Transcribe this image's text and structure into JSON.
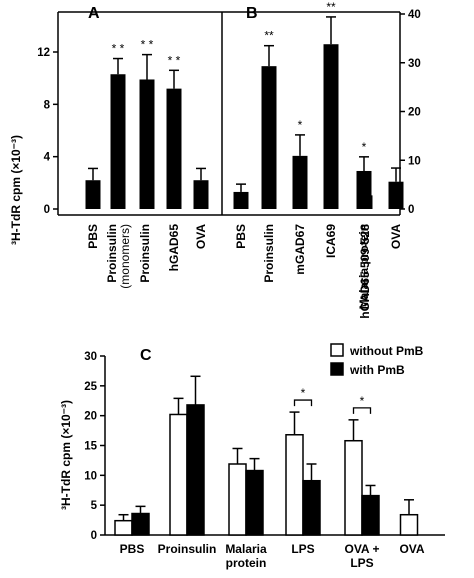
{
  "chart_data": [
    {
      "panel": "A",
      "type": "bar",
      "ylabel": "³H-TdR cpm (×10⁻³)",
      "ylim": [
        0,
        14
      ],
      "yticks": [
        0,
        4,
        8,
        12
      ],
      "categories": [
        "PBS",
        "Proinsulin (monomers)",
        "Proinsulin",
        "hGAD65",
        "OVA"
      ],
      "values": [
        2.2,
        10.3,
        9.9,
        9.2,
        2.2
      ],
      "errors": [
        0.9,
        1.2,
        1.9,
        1.4,
        0.9
      ],
      "significance": [
        "",
        "* *",
        "* *",
        "* *",
        ""
      ]
    },
    {
      "panel": "B",
      "type": "bar",
      "ylim": [
        0,
        40
      ],
      "yticks": [
        0,
        10,
        20,
        30,
        40
      ],
      "categories": [
        "PBS",
        "Proinsulin",
        "mGAD67",
        "ICA69",
        "Malaria protein",
        "hGAD65 509-528",
        "OVA"
      ],
      "values": [
        3.5,
        29.3,
        10.9,
        33.8,
        7.8,
        2.8,
        5.6
      ],
      "errors": [
        1.6,
        4.2,
        4.3,
        5.6,
        2.9,
        2.4,
        2.8
      ],
      "significance": [
        "",
        "**",
        "*",
        "**",
        "*",
        "",
        ""
      ]
    },
    {
      "panel": "C",
      "type": "bar",
      "ylabel": "³H-TdR cpm (×10⁻³)",
      "ylim": [
        0,
        30
      ],
      "yticks": [
        0,
        5,
        10,
        15,
        20,
        25,
        30
      ],
      "categories": [
        "PBS",
        "Proinsulin",
        "Malaria protein",
        "LPS",
        "OVA + LPS",
        "OVA"
      ],
      "series": [
        {
          "name": "without PmB",
          "values": [
            2.4,
            20.2,
            11.9,
            16.8,
            15.8,
            3.4
          ],
          "errors": [
            1.0,
            2.7,
            2.6,
            3.8,
            3.5,
            2.5
          ]
        },
        {
          "name": "with PmB",
          "values": [
            3.6,
            21.8,
            10.8,
            9.1,
            6.6,
            null
          ],
          "errors": [
            1.2,
            4.8,
            2.0,
            2.8,
            1.7,
            null
          ]
        }
      ],
      "significance": [
        "",
        "",
        "",
        "*",
        "*",
        ""
      ],
      "legend": "top-right"
    }
  ],
  "colors": {
    "with_pmb": "#000000",
    "without_pmb": "#ffffff",
    "axis": "#000000"
  }
}
